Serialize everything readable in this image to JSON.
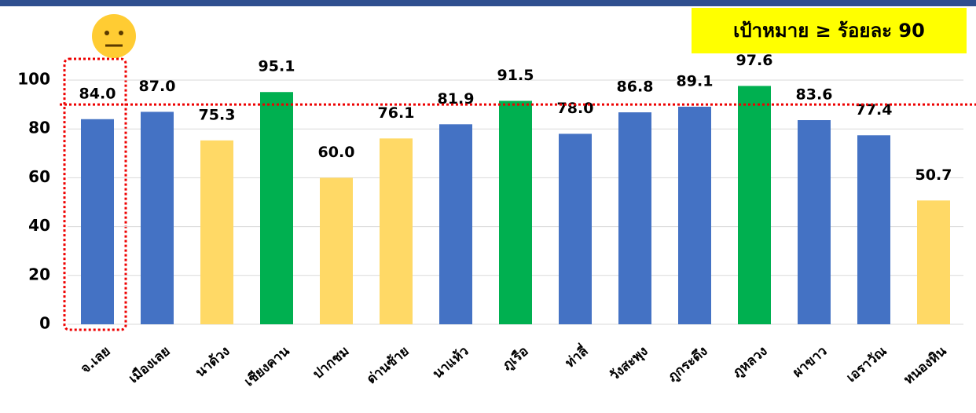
{
  "chart_data": {
    "type": "bar",
    "annotation": "เป้าหมาย ≥ ร้อยละ 90",
    "categories": [
      "จ.เลย",
      "เมืองเลย",
      "นาด้วง",
      "เชียงคาน",
      "ปากชม",
      "ด่านซ้าย",
      "นาแห้ว",
      "ภูเรือ",
      "ท่าลี่",
      "วังสะพุง",
      "ภูกระดึง",
      "ภูหลวง",
      "ผาขาว",
      "เอราวัณ",
      "หนองหิน"
    ],
    "values": [
      84.0,
      87.0,
      75.3,
      95.1,
      60.0,
      76.1,
      81.9,
      91.5,
      78.0,
      86.8,
      89.1,
      97.6,
      83.6,
      77.4,
      50.7
    ],
    "value_labels": [
      "84.0",
      "87.0",
      "75.3",
      "95.1",
      "60.0",
      "76.1",
      "81.9",
      "91.5",
      "78.0",
      "86.8",
      "89.1",
      "97.6",
      "83.6",
      "77.4",
      "50.7"
    ],
    "colors": [
      "#4472c4",
      "#4472c4",
      "#ffd966",
      "#00b050",
      "#ffd966",
      "#ffd966",
      "#4472c4",
      "#00b050",
      "#4472c4",
      "#4472c4",
      "#4472c4",
      "#00b050",
      "#4472c4",
      "#4472c4",
      "#ffd966"
    ],
    "target": 90,
    "ylim": [
      0,
      100
    ],
    "yticks": [
      0,
      20,
      40,
      60,
      80,
      100
    ],
    "grid": true
  }
}
